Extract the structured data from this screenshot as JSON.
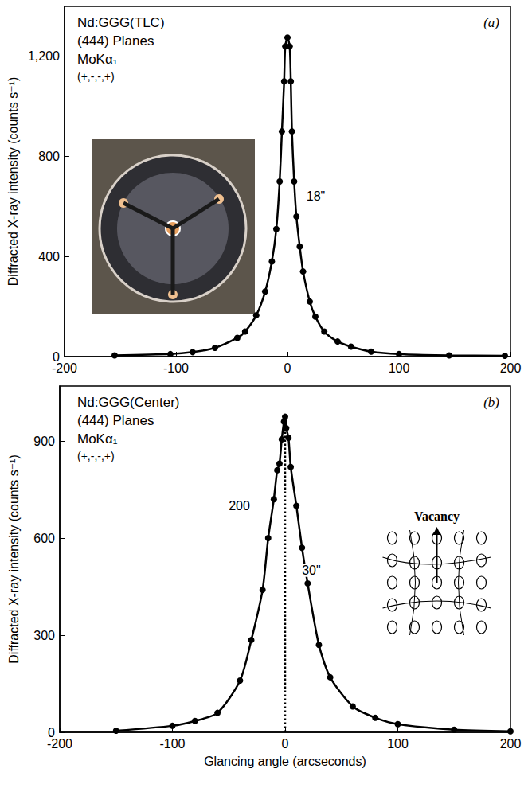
{
  "chart_data": [
    {
      "type": "line",
      "title": "(a)",
      "text_lines": [
        "Nd:GGG(TLC)",
        "(444) Planes",
        "MoKα₁",
        "(+,-,-,+)"
      ],
      "y_label": "Diffracted X-ray intensity (counts s⁻¹)",
      "xlim": [
        -200,
        200
      ],
      "xticks": [
        -200,
        -100,
        0,
        100,
        200
      ],
      "ylim": [
        0,
        1400
      ],
      "yticks": [
        0,
        400,
        800,
        1200
      ],
      "grid": false,
      "annotations": [
        {
          "text": "18\"",
          "x": 12,
          "y": 640
        }
      ],
      "series": [
        {
          "color": "#000000",
          "marker": "circle",
          "line_style": "solid",
          "x": [
            -155,
            -105,
            -85,
            -65,
            -45,
            -38,
            -28,
            -20,
            -14,
            -10,
            -7,
            -5,
            -3,
            -2,
            0,
            2,
            3,
            4,
            6,
            8,
            11,
            14,
            20,
            25,
            33,
            45,
            57,
            75,
            100,
            145,
            195
          ],
          "values": [
            5,
            10,
            18,
            35,
            75,
            100,
            165,
            260,
            380,
            510,
            700,
            900,
            1100,
            1240,
            1275,
            1240,
            1100,
            900,
            700,
            560,
            440,
            340,
            220,
            160,
            100,
            60,
            40,
            20,
            10,
            5,
            3
          ]
        }
      ]
    },
    {
      "type": "line",
      "title": "(b)",
      "text_lines": [
        "Nd:GGG(Center)",
        "(444) Planes",
        "MoKα₁",
        "(+,-,-,+)"
      ],
      "y_label": "Diffracted X-ray intensity (counts s⁻¹)",
      "x_label": "Glancing angle (arcseconds)",
      "xlim": [
        -200,
        200
      ],
      "xticks": [
        -200,
        -100,
        0,
        100,
        200
      ],
      "ylim": [
        0,
        1070
      ],
      "yticks": [
        0,
        300,
        600,
        900
      ],
      "grid": false,
      "inset_text": "Vacancy",
      "annotations": [
        {
          "text": "30\"",
          "x": 10,
          "y": 500
        },
        {
          "text": "200",
          "x": -55,
          "y": 700
        }
      ],
      "series": [
        {
          "color": "#000000",
          "marker": "circle",
          "line_style": "solid",
          "x": [
            -150,
            -100,
            -80,
            -60,
            -40,
            -30,
            -20,
            -15,
            -10,
            -7,
            -5,
            -3,
            -1,
            0,
            1,
            3,
            5,
            10,
            15,
            20,
            30,
            40,
            60,
            80,
            100,
            150,
            200
          ],
          "values": [
            5,
            20,
            35,
            60,
            160,
            285,
            440,
            600,
            720,
            810,
            830,
            905,
            960,
            975,
            940,
            910,
            820,
            700,
            570,
            460,
            270,
            170,
            80,
            45,
            25,
            8,
            3
          ]
        },
        {
          "color": "#000000",
          "marker": "none",
          "line_style": "dotted",
          "x": [
            0,
            0
          ],
          "values": [
            0,
            975
          ]
        }
      ]
    }
  ]
}
